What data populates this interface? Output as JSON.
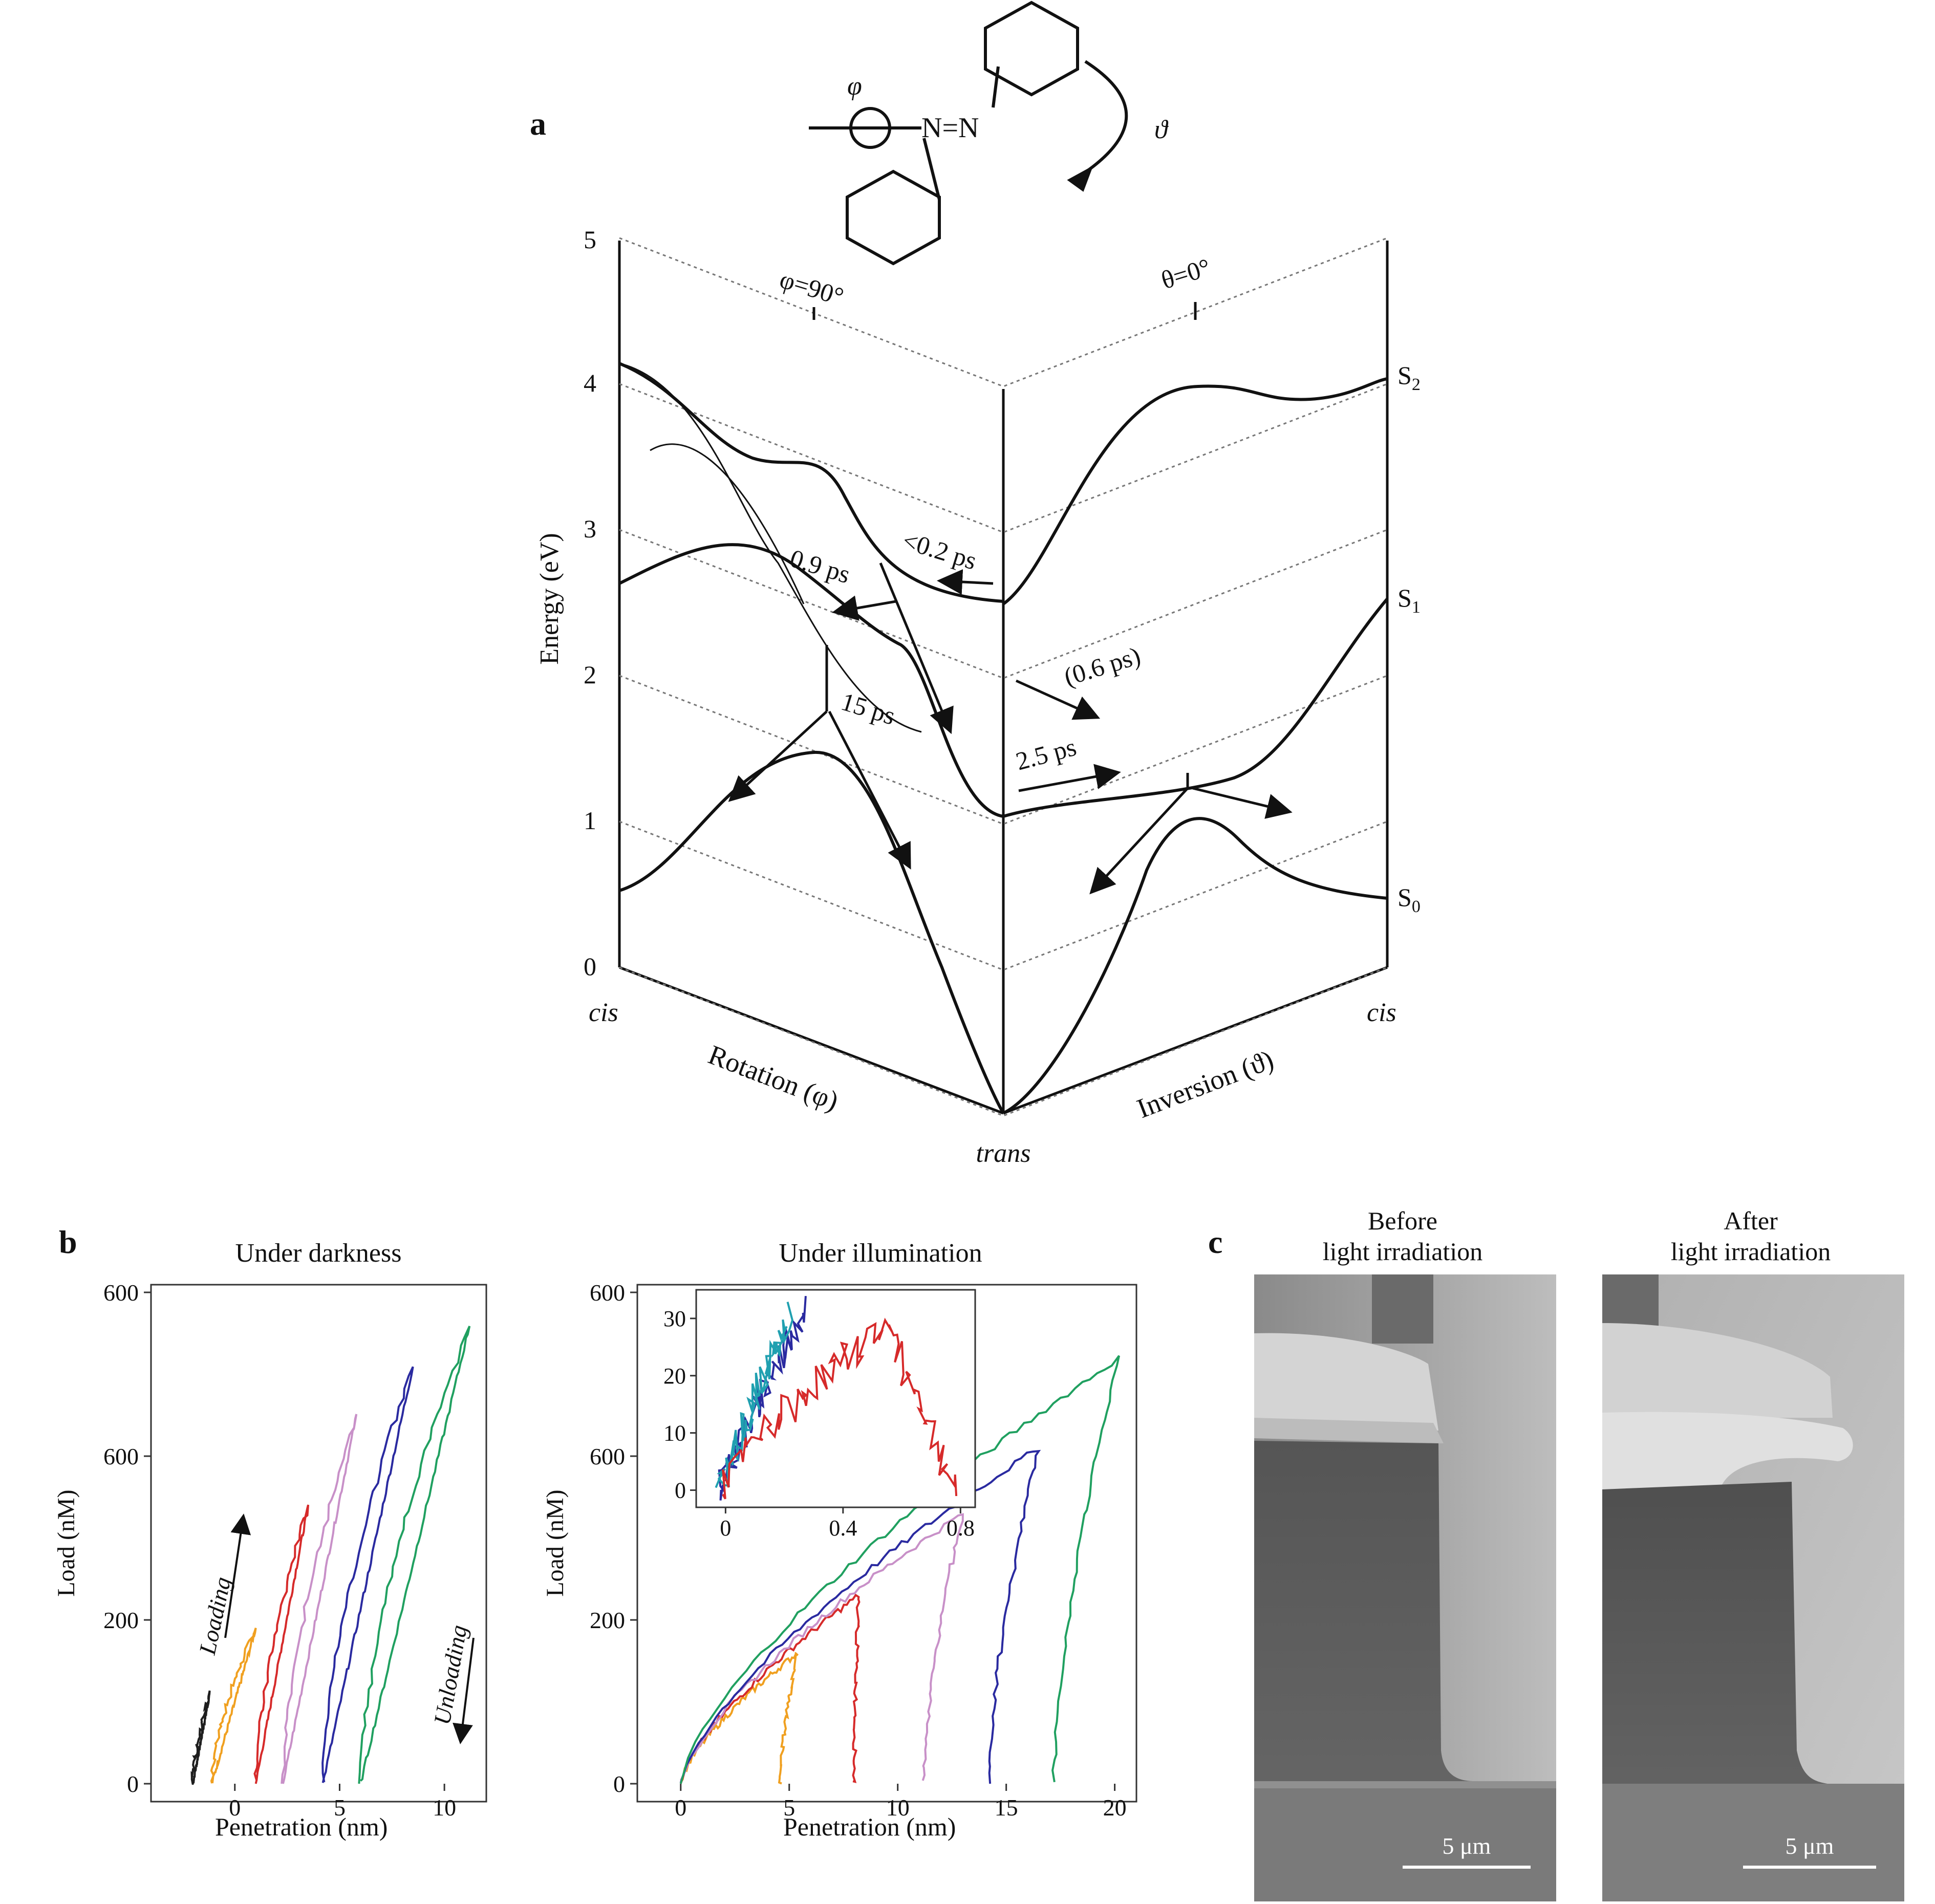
{
  "figure": {
    "panel_a": {
      "letter": "a",
      "molecule": {
        "phi_label": "φ",
        "theta_label": "ϑ",
        "bond_label": "N=N"
      },
      "ylabel": "Energy (eV)",
      "yticks": [
        "0",
        "1",
        "2",
        "3",
        "4",
        "5"
      ],
      "state_labels": {
        "s2": "S",
        "s2_sub": "2",
        "s1": "S",
        "s1_sub": "1",
        "s0": "S",
        "s0_sub": "0"
      },
      "axis_labels": {
        "cis_left": "cis",
        "cis_right": "cis",
        "trans": "trans",
        "rotation": "Rotation (φ)",
        "inversion": "Inversion (ϑ)",
        "phi90": "φ=90°",
        "theta0": "θ=0°"
      },
      "time_labels": {
        "t1": "<0.2 ps",
        "t2": "0.9 ps",
        "t3": "(0.6 ps)",
        "t4": "15 ps",
        "t5": "2.5 ps"
      }
    },
    "panel_b": {
      "letter": "b",
      "chart_data": [
        {
          "type": "line",
          "title": "Under darkness",
          "xlabel": "Penetration (nm)",
          "ylabel": "Load (nM)",
          "xlim": [
            -4,
            12
          ],
          "ylim": [
            0,
            600
          ],
          "xticks": [
            "0",
            "5",
            "10"
          ],
          "yticks": [
            "0",
            "200",
            "600",
            "600"
          ],
          "annotations": [
            "Loading",
            "Unloading"
          ],
          "series": [
            {
              "color": "#1e1e1e",
              "peak": [
                -1.2,
                110
              ],
              "start": -2.0,
              "end": -2.0
            },
            {
              "color": "#f0a020",
              "peak": [
                1.0,
                190
              ],
              "start": -1.1,
              "end": -1.1
            },
            {
              "color": "#d62a2a",
              "peak": [
                3.5,
                340
              ],
              "start": 1.0,
              "end": 1.0
            },
            {
              "color": "#c890c8",
              "peak": [
                5.8,
                450
              ],
              "start": 2.3,
              "end": 2.3
            },
            {
              "color": "#2a2aa0",
              "peak": [
                8.5,
                510
              ],
              "start": 4.2,
              "end": 4.2
            },
            {
              "color": "#20a060",
              "peak": [
                11.2,
                560
              ],
              "start": 6.0,
              "end": 6.0
            }
          ]
        },
        {
          "type": "line",
          "title": "Under illumination",
          "xlabel": "Penetration (nm)",
          "ylabel": "Load (nM)",
          "xlim": [
            -2,
            21
          ],
          "ylim": [
            0,
            600
          ],
          "xticks": [
            "0",
            "5",
            "10",
            "15",
            "20"
          ],
          "yticks": [
            "0",
            "200",
            "600",
            "600"
          ],
          "series": [
            {
              "color": "#f0a020",
              "peak": [
                5.4,
                160
              ],
              "end": 4.6
            },
            {
              "color": "#d62a2a",
              "peak": [
                8.2,
                230
              ],
              "end": 8.0
            },
            {
              "color": "#c890c8",
              "peak": [
                13.0,
                330
              ],
              "end": 11.2
            },
            {
              "color": "#2a2aa0",
              "peak": [
                16.5,
                410
              ],
              "end": 14.2
            },
            {
              "color": "#20a060",
              "peak": [
                20.2,
                520
              ],
              "end": 17.2
            }
          ],
          "inset": {
            "xlim": [
              -0.1,
              0.85
            ],
            "ylim": [
              -3,
              35
            ],
            "xticks": [
              "0",
              "0.4",
              "0.8"
            ],
            "yticks": [
              "0",
              "10",
              "20",
              "30"
            ],
            "series": [
              {
                "color": "#2a2aa0"
              },
              {
                "color": "#20a0b0"
              },
              {
                "color": "#d62a2a"
              }
            ]
          }
        }
      ]
    },
    "panel_c": {
      "letter": "c",
      "before": {
        "title_line1": "Before",
        "title_line2": "light irradiation",
        "scale": "5 μm"
      },
      "after": {
        "title_line1": "After",
        "title_line2": "light irradiation",
        "scale": "5 μm"
      }
    }
  }
}
